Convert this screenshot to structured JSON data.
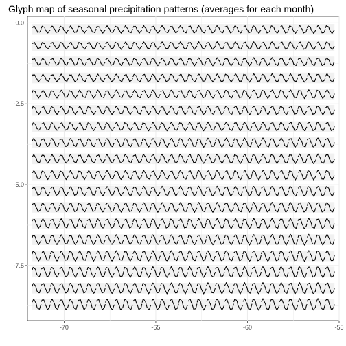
{
  "chart_data": {
    "type": "line",
    "title": "Glyph map of seasonal precipitation patterns (averages for each month)",
    "xlabel": "",
    "ylabel": "",
    "xlim": [
      -72,
      -55
    ],
    "ylim": [
      -9.2,
      0.2
    ],
    "x_ticks": [
      -70,
      -65,
      -60,
      -55
    ],
    "x_tick_labels": [
      "-70",
      "-65",
      "-60",
      "-55"
    ],
    "y_ticks": [
      0.0,
      -2.5,
      -5.0,
      -7.5
    ],
    "y_tick_labels": [
      "0.0",
      "-2.5",
      "-5.0",
      "-7.5"
    ],
    "grid": true,
    "background": "#ffffff",
    "panel_border": "#333333",
    "grid_color": "#ebebeb",
    "line_color": "#000000",
    "glyph_grid": {
      "longitudes": [
        -71.5,
        -71.0,
        -70.5,
        -70.0,
        -69.5,
        -69.0,
        -68.5,
        -68.0,
        -67.5,
        -67.0,
        -66.5,
        -66.0,
        -65.5,
        -65.0,
        -64.5,
        -64.0,
        -63.5,
        -63.0,
        -62.5,
        -62.0,
        -61.5,
        -61.0,
        -60.5,
        -60.0,
        -59.5,
        -59.0,
        -58.5,
        -58.0,
        -57.5,
        -57.0,
        -56.5,
        -56.0,
        -55.5
      ],
      "latitudes": [
        -0.2,
        -0.7,
        -1.2,
        -1.7,
        -2.2,
        -2.7,
        -3.2,
        -3.7,
        -4.2,
        -4.7,
        -5.2,
        -5.7,
        -6.2,
        -6.7,
        -7.2,
        -7.7,
        -8.2,
        -8.7
      ],
      "months": [
        1,
        2,
        3,
        4,
        5,
        6,
        7,
        8,
        9,
        10,
        11,
        12
      ]
    }
  }
}
